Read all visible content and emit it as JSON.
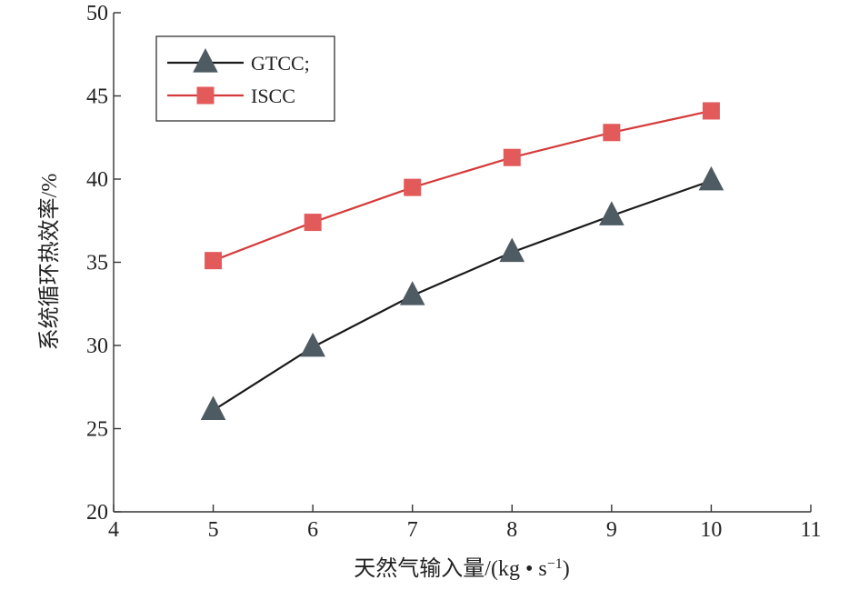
{
  "chart_data": {
    "type": "line",
    "title": "",
    "xlabel": "天然气输入量/(kg • s",
    "xlabel_sup": "−1",
    "xlabel_close": ")",
    "ylabel": "系统循环热效率/%",
    "xlim": [
      4,
      11
    ],
    "ylim": [
      20,
      50
    ],
    "xticks": [
      4,
      5,
      6,
      7,
      8,
      9,
      10,
      11
    ],
    "yticks": [
      20,
      25,
      30,
      35,
      40,
      45,
      50
    ],
    "grid": false,
    "legend_position": "top-left",
    "x": [
      5,
      6,
      7,
      8,
      9,
      10
    ],
    "series": [
      {
        "name": "GTCC;",
        "marker": "triangle",
        "line_color": "#1a1a1a",
        "marker_color": "#4f5b62",
        "values": [
          26.1,
          29.9,
          33.0,
          35.6,
          37.8,
          39.9
        ]
      },
      {
        "name": "ISCC",
        "marker": "square",
        "line_color": "#d53a3a",
        "marker_color": "#e35a5a",
        "values": [
          35.1,
          37.4,
          39.5,
          41.3,
          42.8,
          44.1
        ]
      }
    ]
  }
}
